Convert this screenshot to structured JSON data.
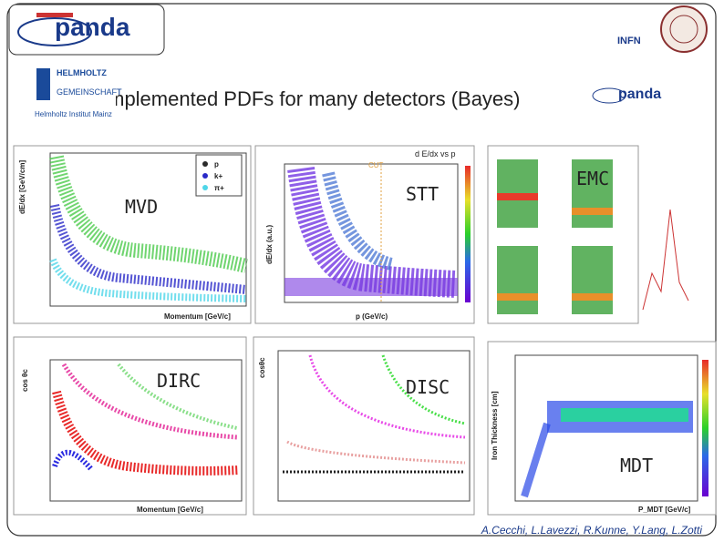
{
  "header": {
    "logo": "panda",
    "institute_logo": "INFN",
    "helmholtz": [
      "HELMHOLTZ",
      "GEMEINSCHAFT",
      "Helmholtz Institut Mainz"
    ],
    "small_logo": "panda"
  },
  "title": "Implemented PDFs for many detectors (Bayes)",
  "panels": [
    {
      "label": "MVD",
      "x_axis": "Momentum [GeV/c]",
      "y_axis": "dE/dx [GeV/cm]",
      "legend": [
        "p",
        "k+",
        "π+"
      ]
    },
    {
      "label": "STT",
      "plot_title": "d E/dx vs p",
      "annotation": "CUT",
      "x_axis": "p (GeV/c)",
      "y_axis": "dE/dx (a.u.)"
    },
    {
      "label": "EMC"
    },
    {
      "label": "DIRC",
      "x_axis": "Momentum [GeV/c]",
      "y_axis": "cos θc"
    },
    {
      "label": "DISC",
      "y_axis": "cosθc"
    },
    {
      "label": "MDT",
      "x_axis": "P_MDT [GeV/c]",
      "y_axis": "Iron Thickness [cm]"
    }
  ],
  "footer": "A.Cecchi, L.Lavezzi, R.Kunne, Y.Lang, L.Zotti"
}
